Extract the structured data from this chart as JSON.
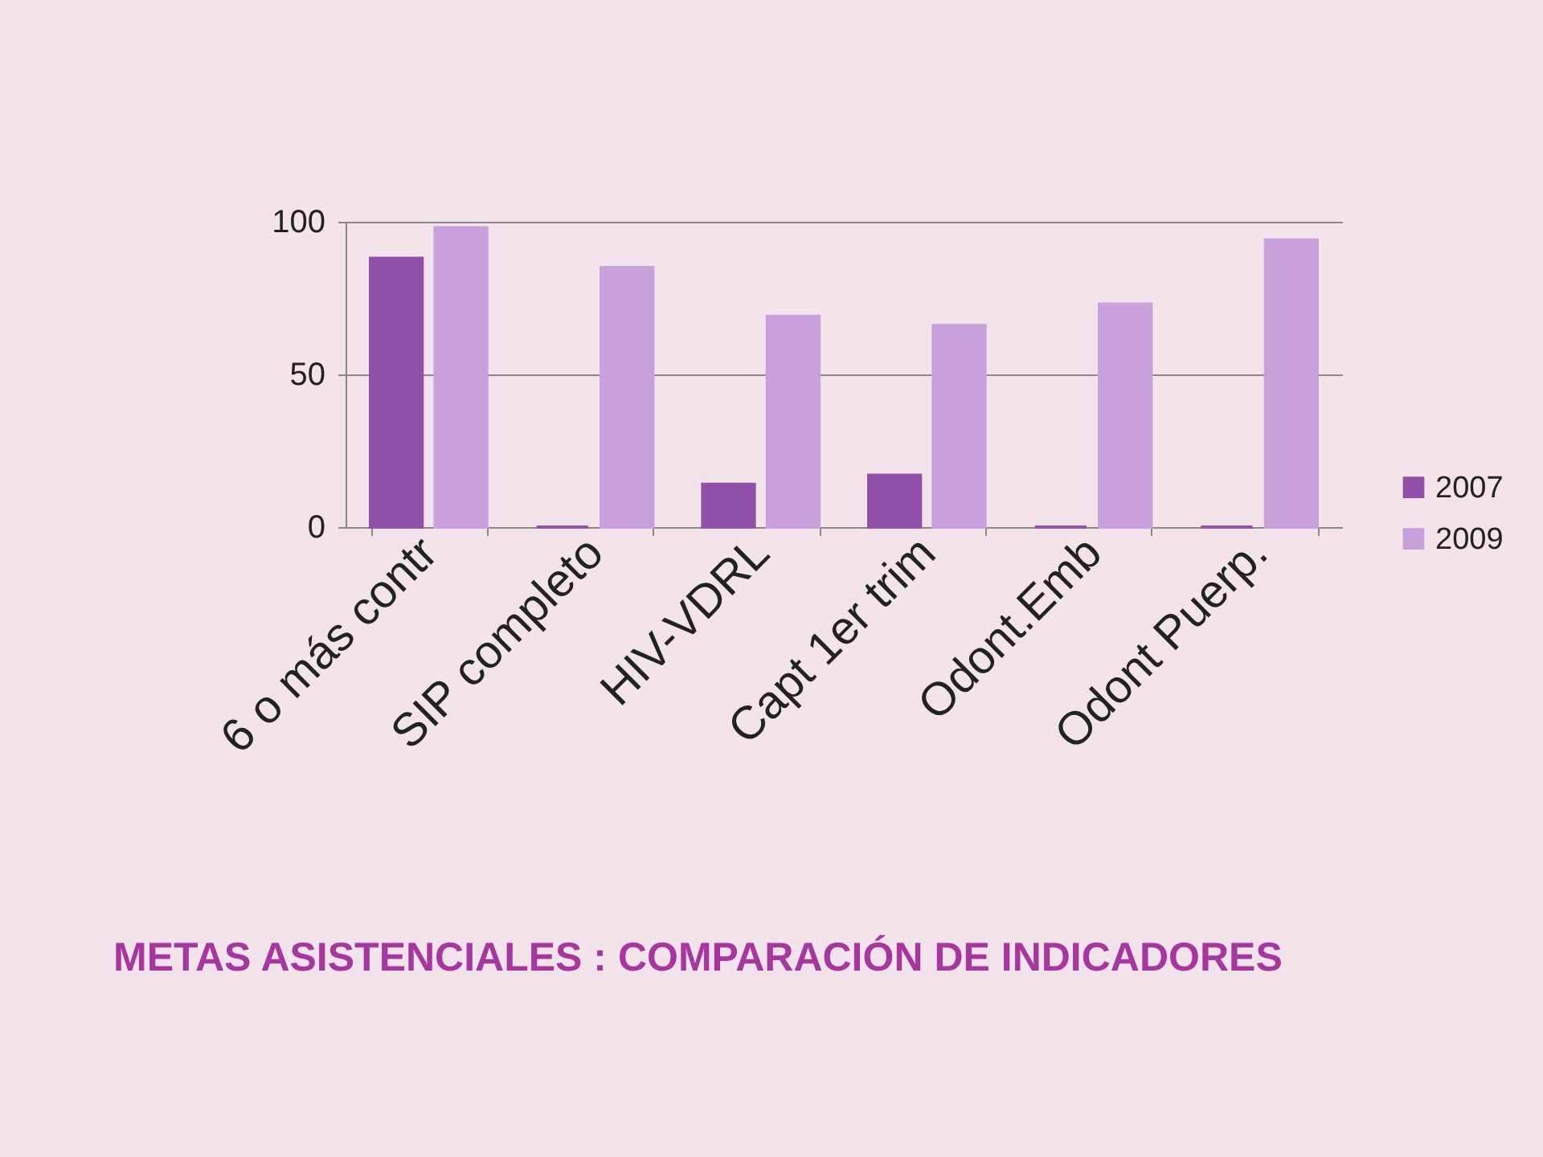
{
  "chart_data": {
    "type": "bar",
    "title": "METAS ASISTENCIALES : COMPARACIÓN DE INDICADORES",
    "categories": [
      "6 o más contr",
      "SIP completo",
      "HIV-VDRL",
      "Capt 1er trim",
      "Odont.Emb",
      "Odont Puerp."
    ],
    "series": [
      {
        "name": "2007",
        "color": "#9150a8",
        "values": [
          88,
          0,
          14,
          17,
          0,
          0
        ]
      },
      {
        "name": "2009",
        "color": "#c8a0dc",
        "values": [
          98,
          85,
          69,
          66,
          73,
          94
        ]
      }
    ],
    "ylim": [
      0,
      100
    ],
    "yticks": [
      0,
      50,
      100
    ],
    "grid": "y",
    "legend": "right"
  }
}
